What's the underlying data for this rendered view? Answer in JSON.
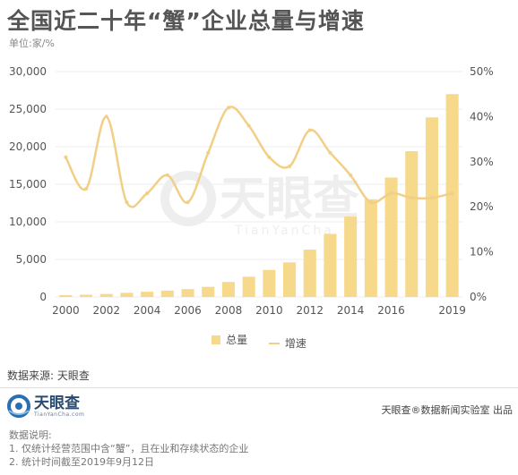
{
  "title": "全国近二十年“蟹”企业总量与增速",
  "unit": "单位:家/%",
  "watermark": "天眼查",
  "watermark_sub": "TianYanCha",
  "legend": {
    "bar_label": "总量",
    "line_label": "增速"
  },
  "source": "数据来源: 天眼查",
  "logo": {
    "text": "天眼查",
    "subtext": "TianYanCha.com"
  },
  "credit": "天眼查®数据新闻实验室 出品",
  "notes": {
    "title": "数据说明:",
    "items": [
      "1. 仅统计经营范围中含“蟹”，且在业和存续状态的企业",
      "2. 统计时间截至2019年9月12日"
    ]
  },
  "colors": {
    "bar": "#f7d98b",
    "line": "#f1cf86",
    "axis_text": "#555555",
    "grid": "#ececec"
  },
  "chart_data": {
    "type": "bar",
    "title": "全国近二十年“蟹”企业总量与增速",
    "x": [
      2000,
      2001,
      2002,
      2003,
      2004,
      2005,
      2006,
      2007,
      2008,
      2009,
      2010,
      2011,
      2012,
      2013,
      2014,
      2015,
      2016,
      2017,
      2018,
      2019
    ],
    "x_tick_labels": [
      "2000",
      "2002",
      "2004",
      "2006",
      "2008",
      "2010",
      "2012",
      "2014",
      "2016",
      "2019"
    ],
    "x_tick_values": [
      2000,
      2002,
      2004,
      2006,
      2008,
      2010,
      2012,
      2014,
      2016,
      2019
    ],
    "series": [
      {
        "name": "总量",
        "type": "bar",
        "axis": "left",
        "values": [
          250,
          300,
          400,
          550,
          700,
          850,
          1050,
          1350,
          2000,
          2700,
          3600,
          4600,
          6300,
          8400,
          10700,
          13000,
          15900,
          19400,
          23900,
          27000
        ]
      },
      {
        "name": "增速",
        "type": "line",
        "axis": "right",
        "values": [
          31,
          24,
          40,
          21,
          23,
          27,
          21,
          32,
          42,
          38,
          31,
          29,
          37,
          32,
          27,
          21,
          23,
          22,
          22,
          23
        ]
      }
    ],
    "y_left": {
      "min": 0,
      "max": 30000,
      "ticks": [
        0,
        5000,
        10000,
        15000,
        20000,
        25000,
        30000
      ],
      "tick_labels": [
        "0",
        "5,000",
        "10,000",
        "15,000",
        "20,000",
        "25,000",
        "30,000"
      ]
    },
    "y_right": {
      "min": 0,
      "max": 50,
      "ticks": [
        0,
        10,
        20,
        30,
        40,
        50
      ],
      "tick_labels": [
        "0%",
        "10%",
        "20%",
        "30%",
        "40%",
        "50%"
      ]
    },
    "grid": true,
    "legend_position": "bottom"
  }
}
